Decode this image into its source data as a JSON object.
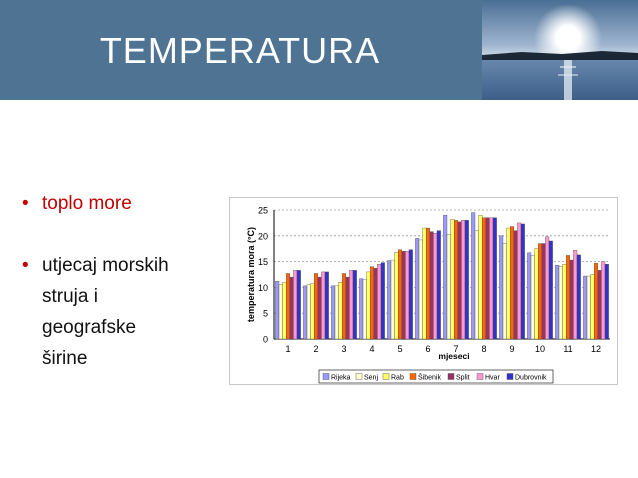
{
  "slide": {
    "title": "TEMPERATURA",
    "bullets": [
      "toplo more",
      "utjecaj morskih struja i geografske širine"
    ],
    "bullet_lines": [
      "utjecaj morskih",
      "struja i",
      "geografske",
      "širine"
    ]
  },
  "colors": {
    "header": "#4f7393",
    "title": "#ffffff",
    "bullet_red": "#c00000",
    "text": "#111111"
  },
  "chart_data": {
    "type": "bar",
    "title": "",
    "xlabel": "mjeseci",
    "ylabel": "temperatura mora (°C)",
    "ylim": [
      0,
      25
    ],
    "yticks": [
      0,
      5,
      10,
      15,
      20,
      25
    ],
    "grid": true,
    "legend_position": "bottom",
    "categories": [
      "1",
      "2",
      "3",
      "4",
      "5",
      "6",
      "7",
      "8",
      "9",
      "10",
      "11",
      "12"
    ],
    "series": [
      {
        "name": "Rijeka",
        "color": "#9999ff",
        "values": [
          11.2,
          10.3,
          10.3,
          11.7,
          15.2,
          19.5,
          24.0,
          24.5,
          20.0,
          16.7,
          14.3,
          12.2
        ]
      },
      {
        "name": "Senj",
        "color": "#ffffcc",
        "values": [
          10.5,
          10.5,
          10.3,
          11.5,
          15.3,
          19.2,
          20.3,
          21.0,
          18.5,
          16.2,
          14.0,
          12.2
        ]
      },
      {
        "name": "Rab",
        "color": "#ffff66",
        "values": [
          11.0,
          10.7,
          11.0,
          13.0,
          16.8,
          21.5,
          23.2,
          24.0,
          21.5,
          17.5,
          14.5,
          12.5
        ]
      },
      {
        "name": "Šibenik",
        "color": "#ff6600",
        "values": [
          12.7,
          12.7,
          12.7,
          14.0,
          17.3,
          21.5,
          23.0,
          23.5,
          21.8,
          18.5,
          16.2,
          14.7
        ]
      },
      {
        "name": "Split",
        "color": "#993366",
        "values": [
          12.0,
          12.0,
          12.0,
          13.7,
          17.0,
          20.8,
          22.7,
          23.5,
          21.0,
          18.5,
          15.3,
          13.3
        ]
      },
      {
        "name": "Hvar",
        "color": "#ff99cc",
        "values": [
          13.3,
          13.0,
          13.3,
          14.5,
          17.0,
          20.5,
          23.0,
          23.5,
          22.5,
          19.8,
          17.2,
          15.0
        ]
      },
      {
        "name": "Dubrovnik",
        "color": "#3333cc",
        "values": [
          13.3,
          13.0,
          13.3,
          14.8,
          17.3,
          21.0,
          23.0,
          23.5,
          22.3,
          19.0,
          16.3,
          14.5
        ]
      }
    ]
  }
}
